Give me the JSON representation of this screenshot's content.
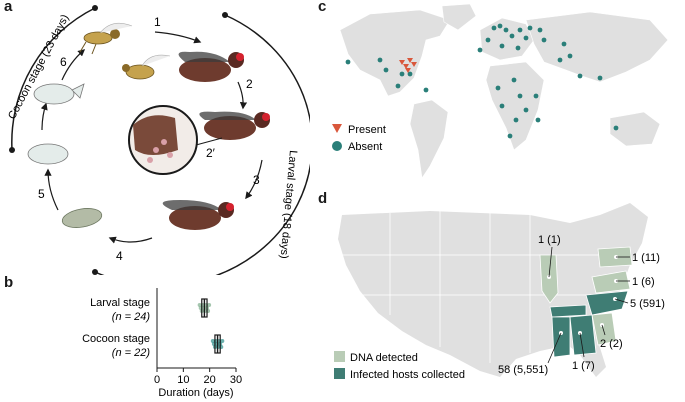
{
  "panels": {
    "a": "a",
    "b": "b",
    "c": "c",
    "d": "d"
  },
  "lifecycle": {
    "cocoon_label": "Cocoon stage (23 days)",
    "larval_label": "Larval stage (18 days)",
    "steps": [
      "1",
      "2",
      "2′",
      "3",
      "4",
      "5",
      "6"
    ]
  },
  "chart_data": {
    "type": "box",
    "categories": [
      "Larval stage",
      "Cocoon stage"
    ],
    "n_labels": [
      "(n = 24)",
      "(n = 22)"
    ],
    "approx_median": [
      18,
      23
    ],
    "approx_q1": [
      17,
      22
    ],
    "approx_q3": [
      19,
      24
    ],
    "xlabel": "Duration (days)",
    "xlim": [
      0,
      30
    ],
    "xticks": [
      "0",
      "10",
      "20",
      "30"
    ],
    "colors": {
      "larval": "#7fae8d",
      "cocoon": "#2f8f8a"
    }
  },
  "world_map": {
    "legend": [
      {
        "label": "Present",
        "color": "#d9573b",
        "shape": "triangle"
      },
      {
        "label": "Absent",
        "color": "#2a7f79",
        "shape": "circle"
      }
    ]
  },
  "us_map": {
    "legend": [
      {
        "label": "DNA detected",
        "color": "#b9ccb6"
      },
      {
        "label": "Infected hosts collected",
        "color": "#3f7d74"
      }
    ],
    "labels": [
      "1 (1)",
      "1 (11)",
      "1 (6)",
      "5 (591)",
      "2 (2)",
      "58 (5,551)",
      "1 (7)"
    ]
  },
  "colors": {
    "land": "#e0e0e0",
    "state_border": "#ffffff",
    "dna": "#b9ccb6",
    "infected": "#3f7d74",
    "present": "#d9573b",
    "absent": "#2a7f79"
  }
}
